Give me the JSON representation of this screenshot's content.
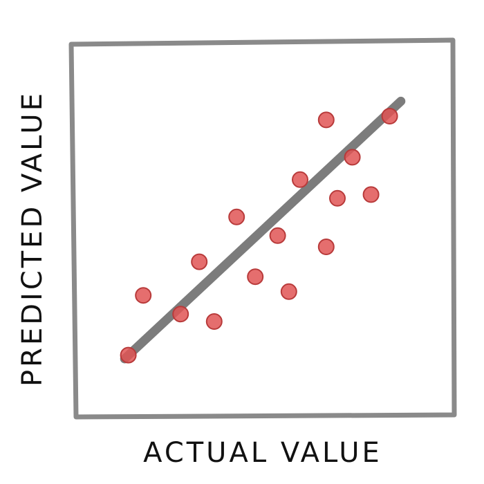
{
  "chart_data": {
    "type": "scatter",
    "title": "",
    "xlabel": "ACTUAL VALUE",
    "ylabel": "PREDICTED VALUE",
    "xlim": [
      0,
      100
    ],
    "ylim": [
      0,
      100
    ],
    "grid": false,
    "legend": "none",
    "points": [
      {
        "x": 14,
        "y": 16
      },
      {
        "x": 18,
        "y": 32
      },
      {
        "x": 28,
        "y": 27
      },
      {
        "x": 33,
        "y": 41
      },
      {
        "x": 37,
        "y": 25
      },
      {
        "x": 43,
        "y": 53
      },
      {
        "x": 48,
        "y": 37
      },
      {
        "x": 54,
        "y": 48
      },
      {
        "x": 57,
        "y": 33
      },
      {
        "x": 60,
        "y": 63
      },
      {
        "x": 67,
        "y": 45
      },
      {
        "x": 67,
        "y": 79
      },
      {
        "x": 70,
        "y": 58
      },
      {
        "x": 74,
        "y": 69
      },
      {
        "x": 79,
        "y": 59
      },
      {
        "x": 84,
        "y": 80
      }
    ],
    "trend_line": {
      "x": [
        13,
        87
      ],
      "y": [
        15,
        84
      ]
    },
    "colors": {
      "frame": "#8a8a8a",
      "trend": "#6e6e6e",
      "point_fill": "#e05555",
      "point_stroke": "#b83a3a",
      "text": "#111111"
    }
  }
}
